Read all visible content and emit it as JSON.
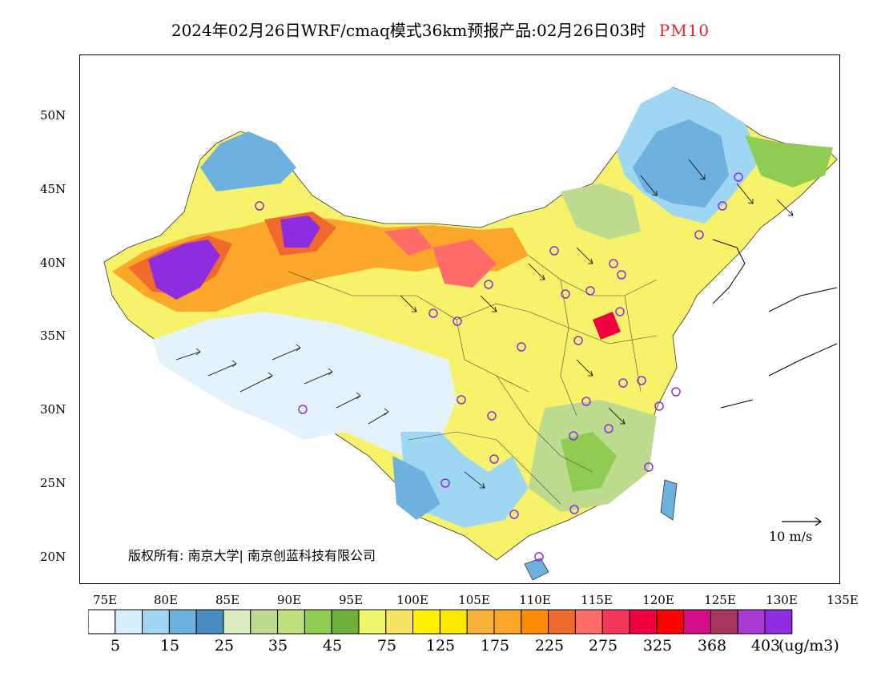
{
  "title": {
    "main": "2024年02月26日WRF/cmaq模式36km预报产品:02月26日03时",
    "pollutant": "PM10"
  },
  "axes": {
    "lat_labels": [
      "50N",
      "45N",
      "40N",
      "35N",
      "30N",
      "25N",
      "20N"
    ],
    "lon_labels": [
      "75E",
      "80E",
      "85E",
      "90E",
      "95E",
      "100E",
      "105E",
      "110E",
      "115E",
      "120E",
      "125E",
      "130E",
      "135E"
    ]
  },
  "copyright": "版权所有: 南京大学| 南京创蓝科技有限公司",
  "vector_reference": "10 m/s",
  "legend": {
    "colors": [
      "#ffffff",
      "#d6eefa",
      "#9fd7f2",
      "#6db2de",
      "#4a8cc2",
      "#dcebc4",
      "#bddb8e",
      "#bfe07a",
      "#90cc52",
      "#6fb03a",
      "#f1f76a",
      "#f5e562",
      "#fff200",
      "#ffe800",
      "#f7b23a",
      "#faa72a",
      "#ff8c00",
      "#f06a2e",
      "#ff6a6a",
      "#f5385a",
      "#f0003f",
      "#ff0000",
      "#d40e88",
      "#a83660",
      "#a83cd0",
      "#8e2de0"
    ],
    "labels": [
      "5",
      "15",
      "25",
      "35",
      "45",
      "75",
      "125",
      "175",
      "225",
      "275",
      "325",
      "368",
      "403"
    ],
    "unit": "(ug/m3)"
  },
  "icons": {
    "station_marker": "circle-marker-icon",
    "wind_vector": "arrow-icon"
  }
}
